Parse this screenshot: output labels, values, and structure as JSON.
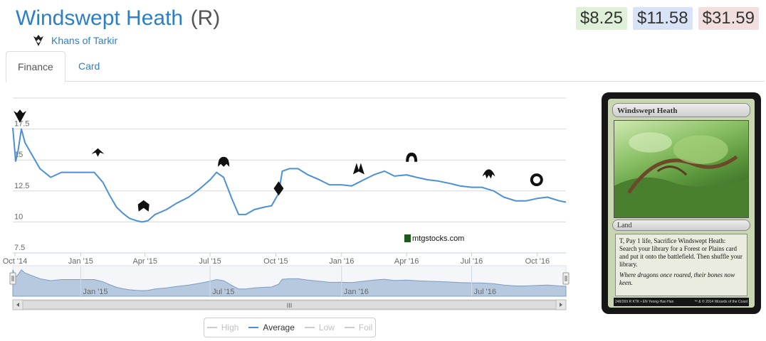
{
  "header": {
    "card_name": "Windswept Heath",
    "rarity": "(R)",
    "set_name": "Khans of Tarkir"
  },
  "prices": {
    "low": "$8.25",
    "avg": "$11.58",
    "high": "$31.59"
  },
  "tabs": [
    {
      "label": "Finance",
      "active": true
    },
    {
      "label": "Card",
      "active": false
    }
  ],
  "chart_watermark": "mtgstocks.com",
  "legend": [
    {
      "label": "High",
      "active": false
    },
    {
      "label": "Average",
      "active": true
    },
    {
      "label": "Low",
      "active": false
    },
    {
      "label": "Foil",
      "active": false
    }
  ],
  "navigator": {
    "labels": [
      "Jan '15",
      "Jul '15",
      "Jan '16",
      "Jul '16"
    ],
    "scrollbar_grip": "III"
  },
  "card_image": {
    "name": "Windswept Heath",
    "type_line": "Land",
    "rules_text": "T, Pay 1 life, Sacrifice Windswept Heath: Search your library for a Forest or Plains card and put it onto the battlefield. Then shuffle your library.",
    "flavor_text": "Where dragons once roared, their bones now keen.",
    "collector_info": "248/269 R KTK • EN Yeong-Hao Han",
    "copyright": "™ & © 2014 Wizards of the Coast"
  },
  "colors": {
    "line": "#4a90d9",
    "accent": "#2a7fc8"
  },
  "chart_data": {
    "type": "line",
    "title": "",
    "x_ticks": [
      "Oct '14",
      "Jan '15",
      "Apr '15",
      "Jul '15",
      "Oct '15",
      "Jan '16",
      "Apr '16",
      "Jul '16",
      "Oct '16"
    ],
    "y_ticks": [
      "7.5",
      "10",
      "12.5",
      "15",
      "17.5"
    ],
    "ylim": [
      7.5,
      20
    ],
    "grid": true,
    "series": [
      {
        "name": "Average",
        "color": "#4a90d9",
        "x": [
          "2014-09-28",
          "2014-10-02",
          "2014-10-05",
          "2014-10-10",
          "2014-10-15",
          "2014-10-25",
          "2014-11-05",
          "2014-11-20",
          "2014-12-05",
          "2014-12-20",
          "2015-01-05",
          "2015-01-20",
          "2015-02-01",
          "2015-02-10",
          "2015-02-20",
          "2015-03-01",
          "2015-03-10",
          "2015-03-20",
          "2015-03-28",
          "2015-04-05",
          "2015-04-15",
          "2015-05-01",
          "2015-05-15",
          "2015-06-01",
          "2015-06-15",
          "2015-07-01",
          "2015-07-10",
          "2015-07-20",
          "2015-08-01",
          "2015-08-10",
          "2015-08-20",
          "2015-09-01",
          "2015-09-15",
          "2015-09-25",
          "2015-10-05",
          "2015-10-10",
          "2015-10-20",
          "2015-11-01",
          "2015-11-15",
          "2015-12-01",
          "2015-12-15",
          "2016-01-01",
          "2016-01-15",
          "2016-02-01",
          "2016-02-15",
          "2016-03-01",
          "2016-03-15",
          "2016-04-01",
          "2016-04-15",
          "2016-05-01",
          "2016-05-15",
          "2016-06-01",
          "2016-06-15",
          "2016-07-01",
          "2016-07-15",
          "2016-08-01",
          "2016-08-15",
          "2016-09-01",
          "2016-09-15",
          "2016-10-01",
          "2016-10-15",
          "2016-11-01",
          "2016-11-10"
        ],
        "y": [
          17.6,
          14.9,
          15.6,
          17.5,
          16.4,
          15.4,
          14.3,
          13.6,
          14.0,
          14.0,
          14.0,
          14.0,
          13.2,
          12.2,
          11.2,
          10.7,
          10.3,
          10.1,
          10.0,
          10.1,
          10.6,
          11.0,
          11.5,
          12.0,
          12.6,
          13.4,
          14.0,
          13.6,
          11.8,
          10.6,
          10.6,
          11.0,
          11.2,
          11.3,
          12.3,
          14.1,
          14.3,
          14.3,
          13.8,
          13.4,
          13.0,
          13.0,
          12.9,
          13.4,
          13.8,
          14.1,
          13.7,
          13.8,
          13.6,
          13.4,
          13.3,
          13.1,
          12.9,
          12.8,
          12.8,
          12.5,
          12.0,
          11.7,
          11.7,
          11.9,
          12.0,
          11.7,
          11.6
        ]
      }
    ],
    "set_markers": [
      {
        "set": "Khans of Tarkir",
        "x": "2014-10-08",
        "y": 18.5
      },
      {
        "set": "Fate Reforged",
        "x": "2015-01-25",
        "y": 15.6
      },
      {
        "set": "Dragons of Tarkir",
        "x": "2015-03-30",
        "y": 11.3
      },
      {
        "set": "Magic Origins",
        "x": "2015-07-20",
        "y": 14.8
      },
      {
        "set": "Battle for Zendikar",
        "x": "2015-10-05",
        "y": 12.7
      },
      {
        "set": "Oath of the Gatewatch",
        "x": "2016-01-25",
        "y": 14.3
      },
      {
        "set": "Shadows over Innistrad",
        "x": "2016-04-08",
        "y": 15.2
      },
      {
        "set": "Eldritch Moon",
        "x": "2016-07-25",
        "y": 13.9
      },
      {
        "set": "Kaladesh",
        "x": "2016-09-30",
        "y": 13.4
      }
    ]
  }
}
